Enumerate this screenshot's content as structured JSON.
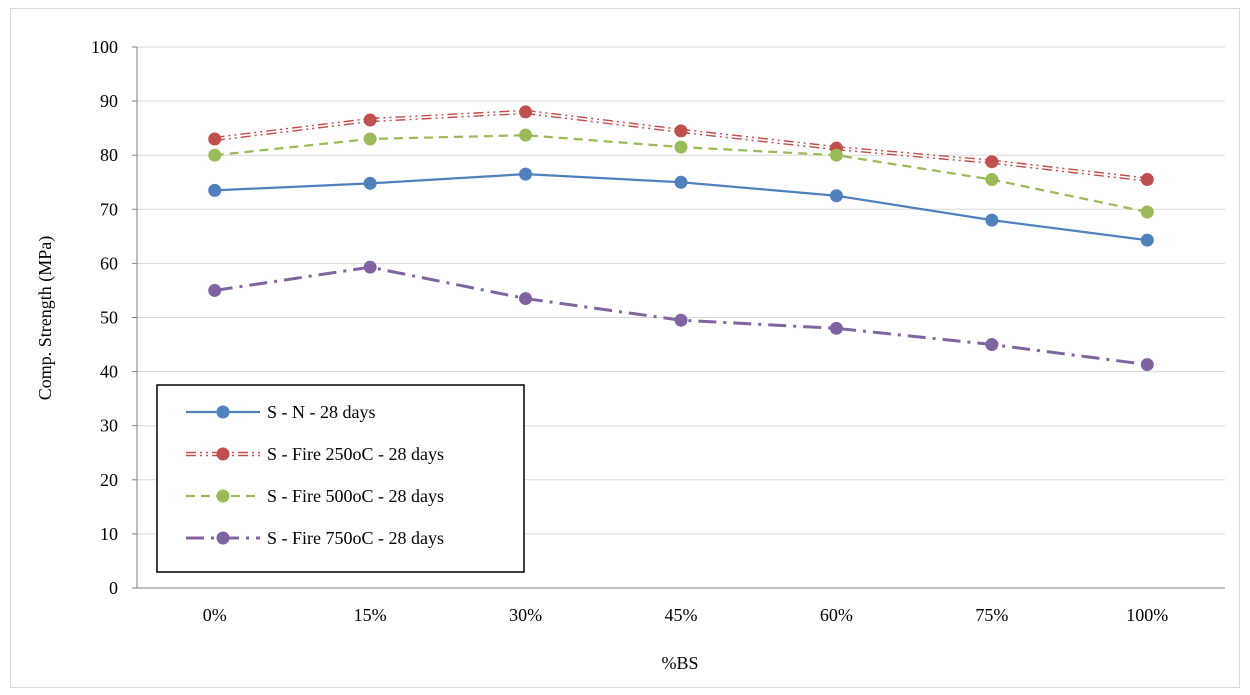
{
  "chart_data": {
    "type": "line",
    "title": "",
    "xlabel": "%BS",
    "ylabel": "Comp. Strength (MPa)",
    "ylim": [
      0,
      100
    ],
    "yticks": [
      0,
      10,
      20,
      30,
      40,
      50,
      60,
      70,
      80,
      90,
      100
    ],
    "grid": true,
    "legend_position": "bottom-left",
    "categories": [
      "0%",
      "15%",
      "30%",
      "45%",
      "60%",
      "75%",
      "100%"
    ],
    "series": [
      {
        "name": "S - N - 28 days",
        "values": [
          73.5,
          74.8,
          76.5,
          75.0,
          72.5,
          68.0,
          64.3
        ],
        "color": "#4f81bd",
        "line_style": "solid"
      },
      {
        "name": "S - Fire 250oC - 28 days",
        "values": [
          83.0,
          86.5,
          88.0,
          84.5,
          81.3,
          78.8,
          75.5
        ],
        "color": "#c0504d",
        "line_style": "double-dash-dot-dot"
      },
      {
        "name": "S - Fire 500oC - 28 days",
        "values": [
          80.0,
          83.0,
          83.7,
          81.5,
          80.0,
          75.5,
          69.5
        ],
        "color": "#9bbb59",
        "line_style": "dashed"
      },
      {
        "name": "S - Fire 750oC - 28 days",
        "values": [
          55.0,
          59.3,
          53.5,
          49.5,
          48.0,
          45.0,
          41.3
        ],
        "color": "#8064a2",
        "line_style": "long-dash-dot"
      }
    ]
  }
}
